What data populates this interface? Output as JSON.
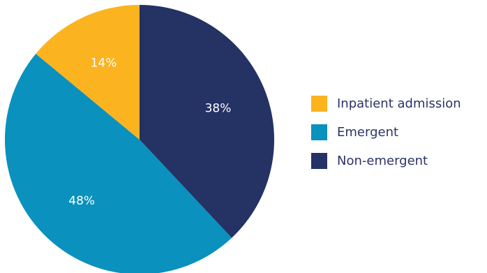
{
  "chart_data": {
    "type": "pie",
    "title": "",
    "legend_position": "right",
    "start_angle": "12 o'clock",
    "direction": "clockwise",
    "slices": [
      {
        "label": "Non-emergent",
        "value": 38,
        "value_label": "38%",
        "color": "#243264"
      },
      {
        "label": "Emergent",
        "value": 48,
        "value_label": "48%",
        "color": "#0a91be"
      },
      {
        "label": "Inpatient admission",
        "value": 14,
        "value_label": "14%",
        "color": "#fbb320"
      }
    ],
    "legend_order": [
      "Inpatient admission",
      "Emergent",
      "Non-emergent"
    ]
  }
}
